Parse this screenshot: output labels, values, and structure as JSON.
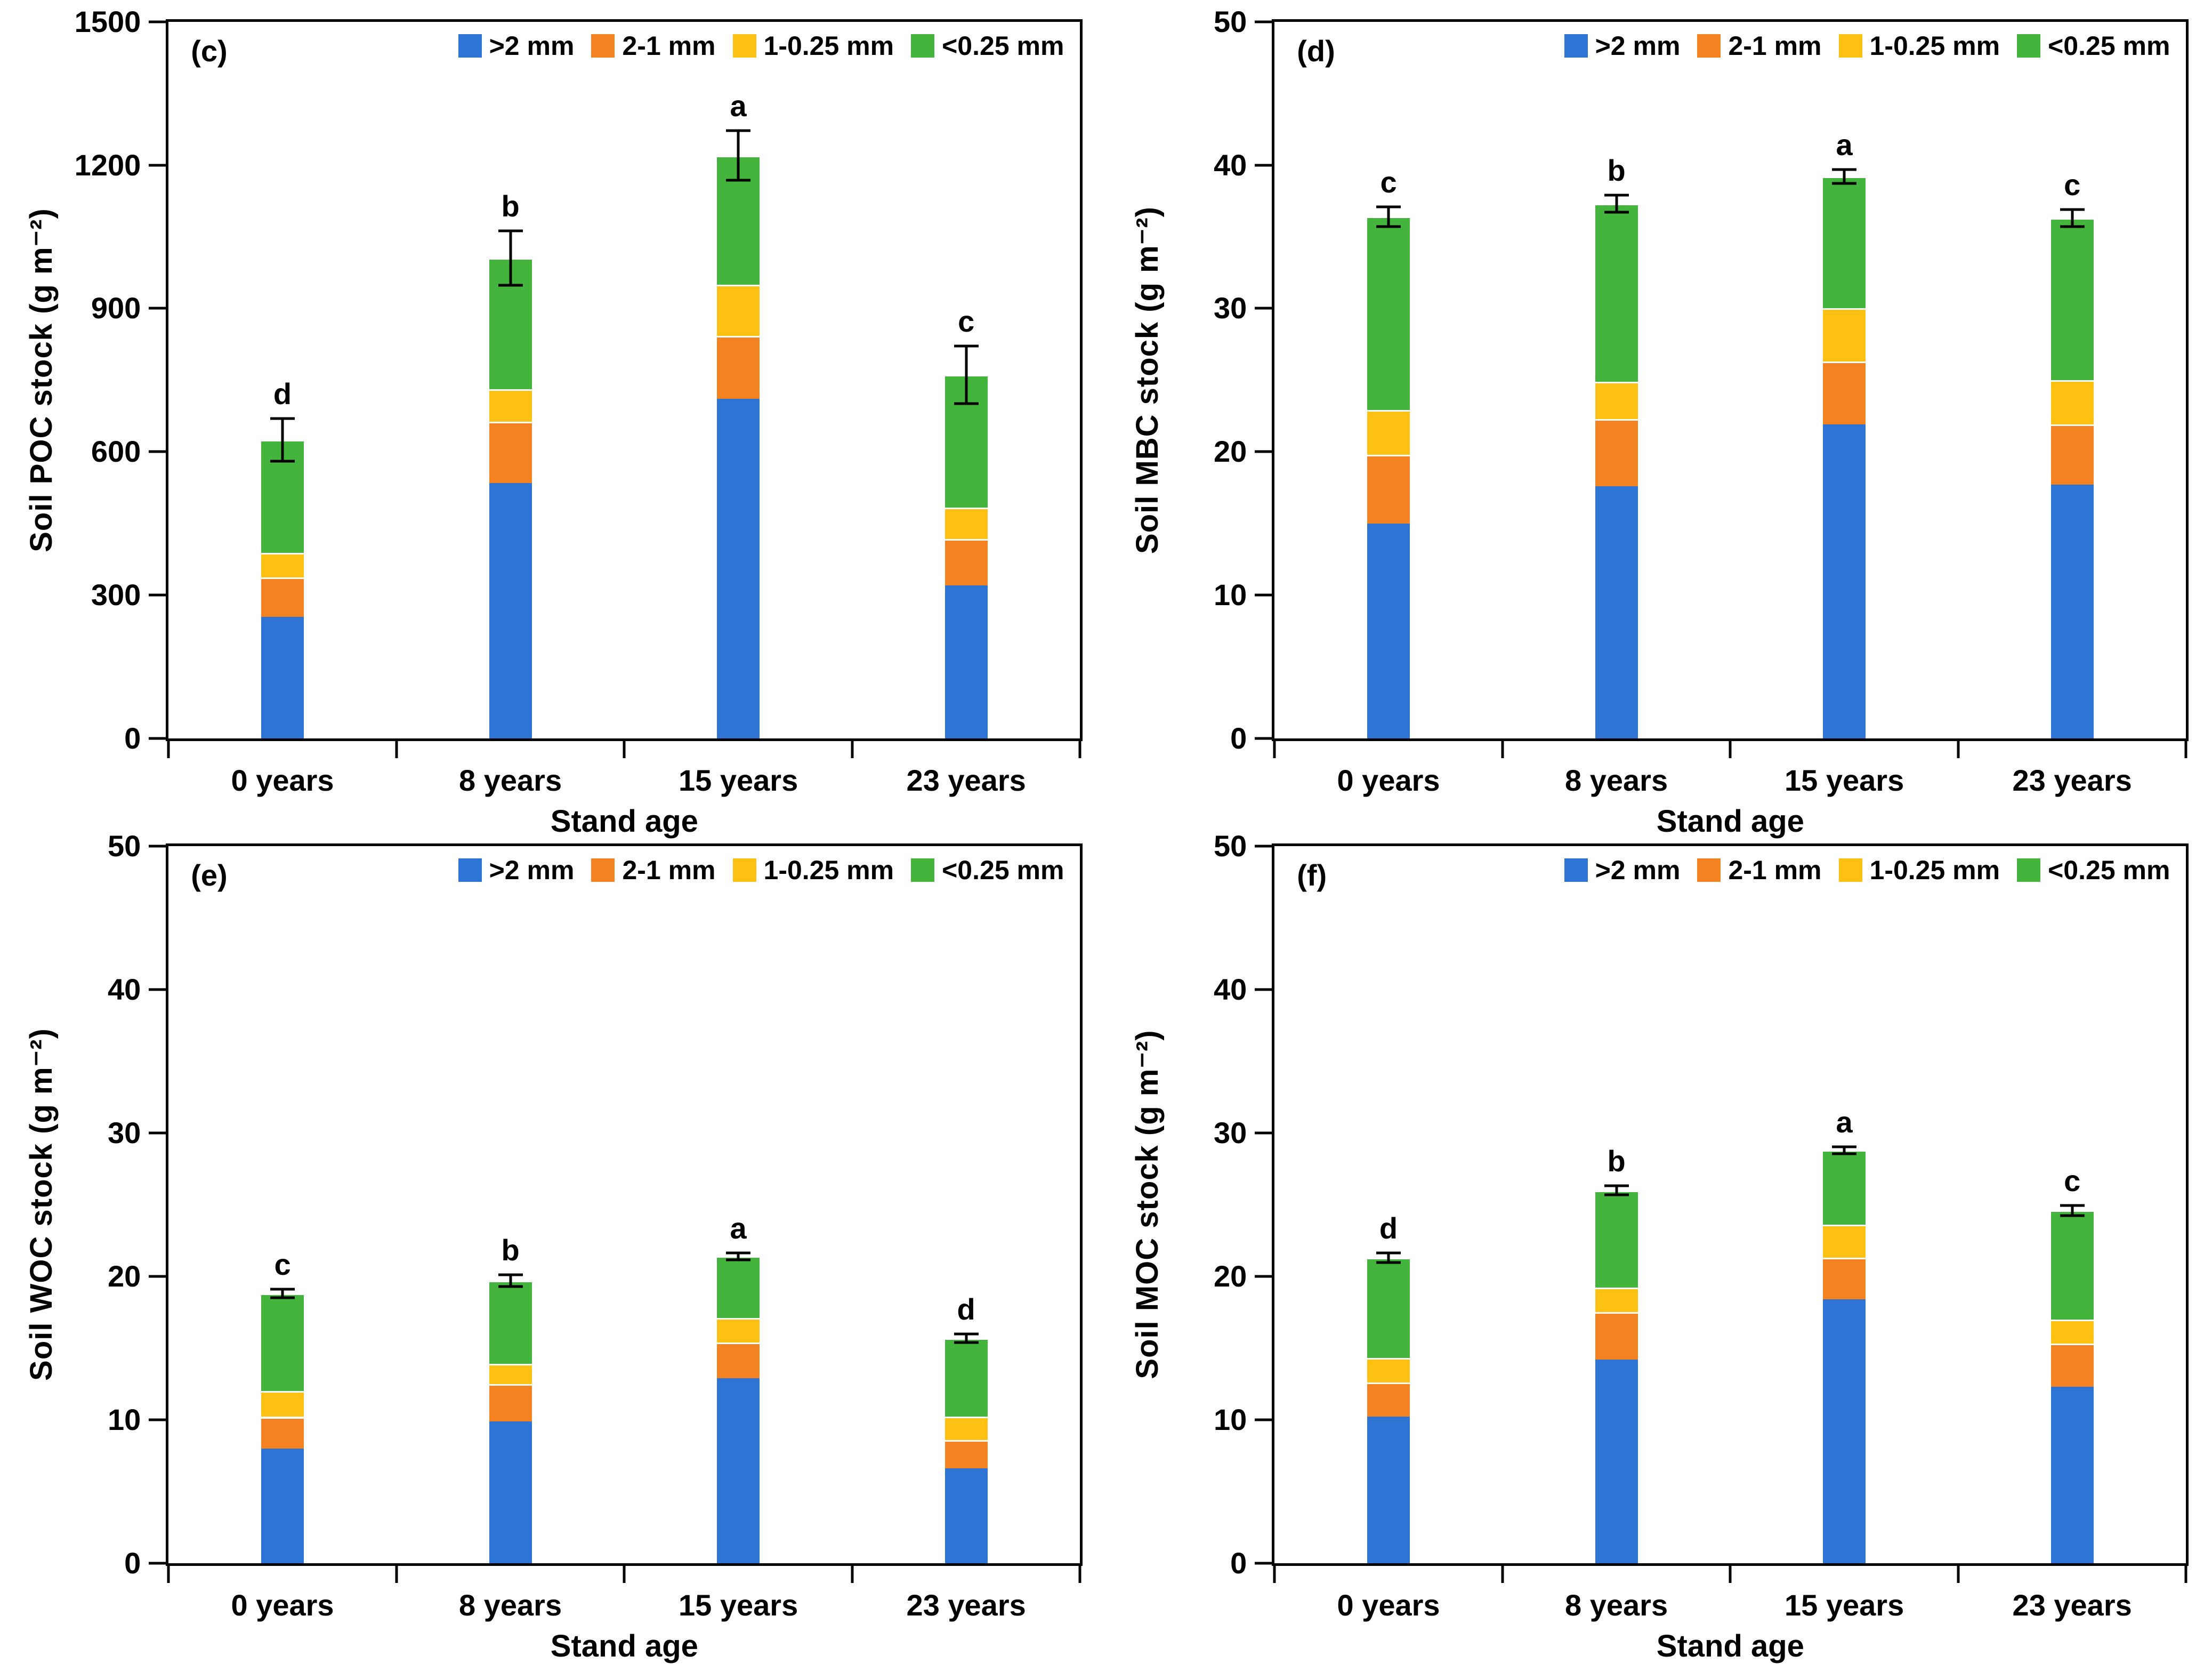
{
  "figure": {
    "xlabel": "Stand age",
    "categories": [
      "0 years",
      "8 years",
      "15 years",
      "23 years"
    ],
    "axis_color": "#000000",
    "background": "#ffffff"
  },
  "legend_labels": [
    ">2 mm",
    "2-1 mm",
    "1-0.25 mm",
    "<0.25 mm"
  ],
  "series_colors": {
    "gt2mm": "#2E74D4",
    "mm2_1": "#F58220",
    "mm1_025": "#FDC113",
    "lt025mm": "#43B53C"
  },
  "chart_data": [
    {
      "id": "c",
      "panel_label": "(c)",
      "type": "bar",
      "stacked": true,
      "ylabel": "Soil POC stock (g m⁻²)",
      "xlabel": "Stand age",
      "ylim": [
        0,
        1500
      ],
      "yticks": [
        0,
        300,
        600,
        900,
        1200,
        1500
      ],
      "categories": [
        "0 years",
        "8 years",
        "15 years",
        "23 years"
      ],
      "series": [
        {
          "name": ">2 mm",
          "color": "#2E74D4",
          "values": [
            255,
            535,
            711,
            320
          ]
        },
        {
          "name": "2-1 mm",
          "color": "#F58220",
          "values": [
            82,
            128,
            131,
            97
          ]
        },
        {
          "name": "1-0.25 mm",
          "color": "#FDC113",
          "values": [
            51,
            68,
            108,
            66
          ]
        },
        {
          "name": "<0.25 mm",
          "color": "#43B53C",
          "values": [
            237,
            274,
            270,
            278
          ]
        }
      ],
      "totals": [
        625,
        1005,
        1220,
        761
      ],
      "error_bars": [
        45,
        57,
        52,
        60
      ],
      "sig_letters": [
        "d",
        "b",
        "a",
        "c"
      ],
      "legend_position": "top-right",
      "grid": false
    },
    {
      "id": "d",
      "panel_label": "(d)",
      "type": "bar",
      "stacked": true,
      "ylabel": "Soil MBC stock (g m⁻²)",
      "xlabel": "Stand age",
      "ylim": [
        0,
        50
      ],
      "yticks": [
        0,
        10,
        20,
        30,
        40,
        50
      ],
      "categories": [
        "0 years",
        "8 years",
        "15 years",
        "23 years"
      ],
      "series": [
        {
          "name": ">2 mm",
          "color": "#2E74D4",
          "values": [
            15.0,
            17.6,
            21.9,
            17.7
          ]
        },
        {
          "name": "2-1 mm",
          "color": "#F58220",
          "values": [
            4.8,
            4.7,
            4.4,
            4.2
          ]
        },
        {
          "name": "1-0.25 mm",
          "color": "#FDC113",
          "values": [
            3.1,
            2.6,
            3.7,
            3.1
          ]
        },
        {
          "name": "<0.25 mm",
          "color": "#43B53C",
          "values": [
            13.5,
            12.4,
            9.2,
            11.3
          ]
        }
      ],
      "totals": [
        36.4,
        37.3,
        39.2,
        36.3
      ],
      "error_bars": [
        0.7,
        0.6,
        0.5,
        0.6
      ],
      "sig_letters": [
        "c",
        "b",
        "a",
        "c"
      ],
      "legend_position": "top-right",
      "grid": false
    },
    {
      "id": "e",
      "panel_label": "(e)",
      "type": "bar",
      "stacked": true,
      "ylabel": "Soil WOC stock (g m⁻²)",
      "xlabel": "Stand age",
      "ylim": [
        0,
        50
      ],
      "yticks": [
        0,
        10,
        20,
        30,
        40,
        50
      ],
      "categories": [
        "0 years",
        "8 years",
        "15 years",
        "23 years"
      ],
      "series": [
        {
          "name": ">2 mm",
          "color": "#2E74D4",
          "values": [
            8.0,
            9.9,
            12.9,
            6.6
          ]
        },
        {
          "name": "2-1 mm",
          "color": "#F58220",
          "values": [
            2.2,
            2.6,
            2.5,
            2.0
          ]
        },
        {
          "name": "1-0.25 mm",
          "color": "#FDC113",
          "values": [
            1.8,
            1.4,
            1.7,
            1.6
          ]
        },
        {
          "name": "<0.25 mm",
          "color": "#43B53C",
          "values": [
            6.8,
            5.8,
            4.3,
            5.5
          ]
        }
      ],
      "totals": [
        18.8,
        19.7,
        21.4,
        15.7
      ],
      "error_bars": [
        0.3,
        0.4,
        0.25,
        0.3
      ],
      "sig_letters": [
        "c",
        "b",
        "a",
        "d"
      ],
      "legend_position": "top-right",
      "grid": false
    },
    {
      "id": "f",
      "panel_label": "(f)",
      "type": "bar",
      "stacked": true,
      "ylabel": "Soil MOC stock (g m⁻²)",
      "xlabel": "Stand age",
      "ylim": [
        0,
        50
      ],
      "yticks": [
        0,
        10,
        20,
        30,
        40,
        50
      ],
      "categories": [
        "0 years",
        "8 years",
        "15 years",
        "23 years"
      ],
      "series": [
        {
          "name": ">2 mm",
          "color": "#2E74D4",
          "values": [
            10.2,
            14.2,
            18.4,
            12.3
          ]
        },
        {
          "name": "2-1 mm",
          "color": "#F58220",
          "values": [
            2.4,
            3.3,
            2.9,
            3.0
          ]
        },
        {
          "name": "1-0.25 mm",
          "color": "#FDC113",
          "values": [
            1.7,
            1.7,
            2.3,
            1.7
          ]
        },
        {
          "name": "<0.25 mm",
          "color": "#43B53C",
          "values": [
            7.0,
            6.8,
            5.2,
            7.6
          ]
        }
      ],
      "totals": [
        21.3,
        26.0,
        28.8,
        24.6
      ],
      "error_bars": [
        0.35,
        0.3,
        0.25,
        0.35
      ],
      "sig_letters": [
        "d",
        "b",
        "a",
        "c"
      ],
      "legend_position": "top-right",
      "grid": false
    }
  ]
}
